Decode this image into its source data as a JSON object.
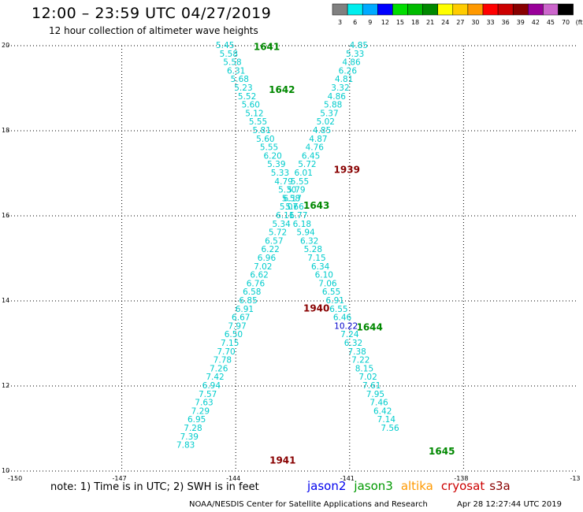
{
  "title": "12:00 – 23:59 UTC 04/27/2019",
  "subtitle": "12 hour collection of altimeter wave heights",
  "legend": {
    "unit": "(ft)",
    "bins": [
      {
        "label": "3",
        "color": "#808080"
      },
      {
        "label": "6",
        "color": "#00eeee"
      },
      {
        "label": "9",
        "color": "#00aaff"
      },
      {
        "label": "12",
        "color": "#0000ff"
      },
      {
        "label": "15",
        "color": "#00dd00"
      },
      {
        "label": "18",
        "color": "#00bb00"
      },
      {
        "label": "21",
        "color": "#008800"
      },
      {
        "label": "24",
        "color": "#ffff00"
      },
      {
        "label": "27",
        "color": "#ffcc00"
      },
      {
        "label": "30",
        "color": "#ff9900"
      },
      {
        "label": "33",
        "color": "#ff0000"
      },
      {
        "label": "36",
        "color": "#cc0000"
      },
      {
        "label": "39",
        "color": "#880000"
      },
      {
        "label": "42",
        "color": "#990099"
      },
      {
        "label": "45",
        "color": "#cc66cc"
      },
      {
        "label": "70",
        "color": "#000000"
      }
    ]
  },
  "axes": {
    "lon_ticks": [
      "-150",
      "-147",
      "-144",
      "-141",
      "-138",
      "-13"
    ],
    "lat_ticks": [
      "20",
      "18",
      "16",
      "14",
      "12",
      "10"
    ]
  },
  "satellites": [
    {
      "name": "jason2",
      "color": "#0000ee"
    },
    {
      "name": "jason3",
      "color": "#009900"
    },
    {
      "name": "altika",
      "color": "#ff9900"
    },
    {
      "name": "cryosat",
      "color": "#cc0000"
    },
    {
      "name": "s3a",
      "color": "#880000"
    }
  ],
  "note": "note: 1) Time is in UTC; 2) SWH is in feet",
  "footer_left": "NOAA/NESDIS Center for Satellite Applications and Research",
  "footer_right": "Apr 28 12:27:44 UTC 2019",
  "track_a": {
    "color": "#00cccc",
    "lat_start": 20.0,
    "lat_step": -0.2,
    "lon_start": -144.28,
    "lon_step": 0.0965,
    "values": [
      "5.45",
      "5.58",
      "5.58",
      "6.31",
      "5.68",
      "5.23",
      "5.52",
      "5.60",
      "5.12",
      "5.55",
      "5.81",
      "5.60",
      "5.55",
      "6.20",
      "5.39",
      "5.33",
      "4.79",
      "5.30",
      "5.58",
      "5.66",
      "6.77",
      "6.18",
      "5.94",
      "6.32",
      "5.28",
      "7.15",
      "6.34",
      "6.10",
      "7.06",
      "6.55",
      "6.91",
      "6.55",
      "6.46",
      "10.22",
      "7.24",
      "6.32",
      "7.38",
      "7.22",
      "8.15",
      "7.02",
      "7.61",
      "7.95",
      "7.46",
      "6.42",
      "7.14",
      "7.56"
    ],
    "dark_value": "10.22"
  },
  "track_b": {
    "color": "#00cccc",
    "lat_start": 20.0,
    "lat_step": -0.2,
    "lon_start": -140.76,
    "lon_step": -0.097,
    "values": [
      "4.85",
      "5.33",
      "4.86",
      "6.26",
      "4.81",
      "3.32",
      "4.86",
      "5.88",
      "5.37",
      "5.02",
      "4.85",
      "4.87",
      "4.76",
      "6.45",
      "5.72",
      "6.01",
      "5.55",
      "5.79",
      "6.17",
      "5.07",
      "6.11",
      "5.34",
      "5.72",
      "6.57",
      "6.22",
      "6.96",
      "7.02",
      "6.62",
      "6.76",
      "6.58",
      "6.85",
      "6.91",
      "6.67",
      "7.97",
      "6.50",
      "7.15",
      "7.70",
      "7.78",
      "7.26",
      "7.42",
      "6.94",
      "7.57",
      "7.63",
      "7.29",
      "6.95",
      "7.28",
      "7.39",
      "7.83"
    ],
    "start_index": 0,
    "lat_first": 20.0
  },
  "time_labels": [
    {
      "text": "1641",
      "color": "#008800",
      "lon": -143.53,
      "lat": 19.97
    },
    {
      "text": "1642",
      "color": "#008800",
      "lon": -143.13,
      "lat": 18.96
    },
    {
      "text": "1939",
      "color": "#880000",
      "lon": -141.42,
      "lat": 17.08
    },
    {
      "text": "1643",
      "color": "#008800",
      "lon": -142.22,
      "lat": 16.24
    },
    {
      "text": "1940",
      "color": "#880000",
      "lon": -142.22,
      "lat": 13.82
    },
    {
      "text": "1644",
      "color": "#008800",
      "lon": -140.82,
      "lat": 13.38
    },
    {
      "text": "1645",
      "color": "#008800",
      "lon": -138.92,
      "lat": 10.46
    },
    {
      "text": "1941",
      "color": "#880000",
      "lon": -143.11,
      "lat": 10.25
    }
  ]
}
